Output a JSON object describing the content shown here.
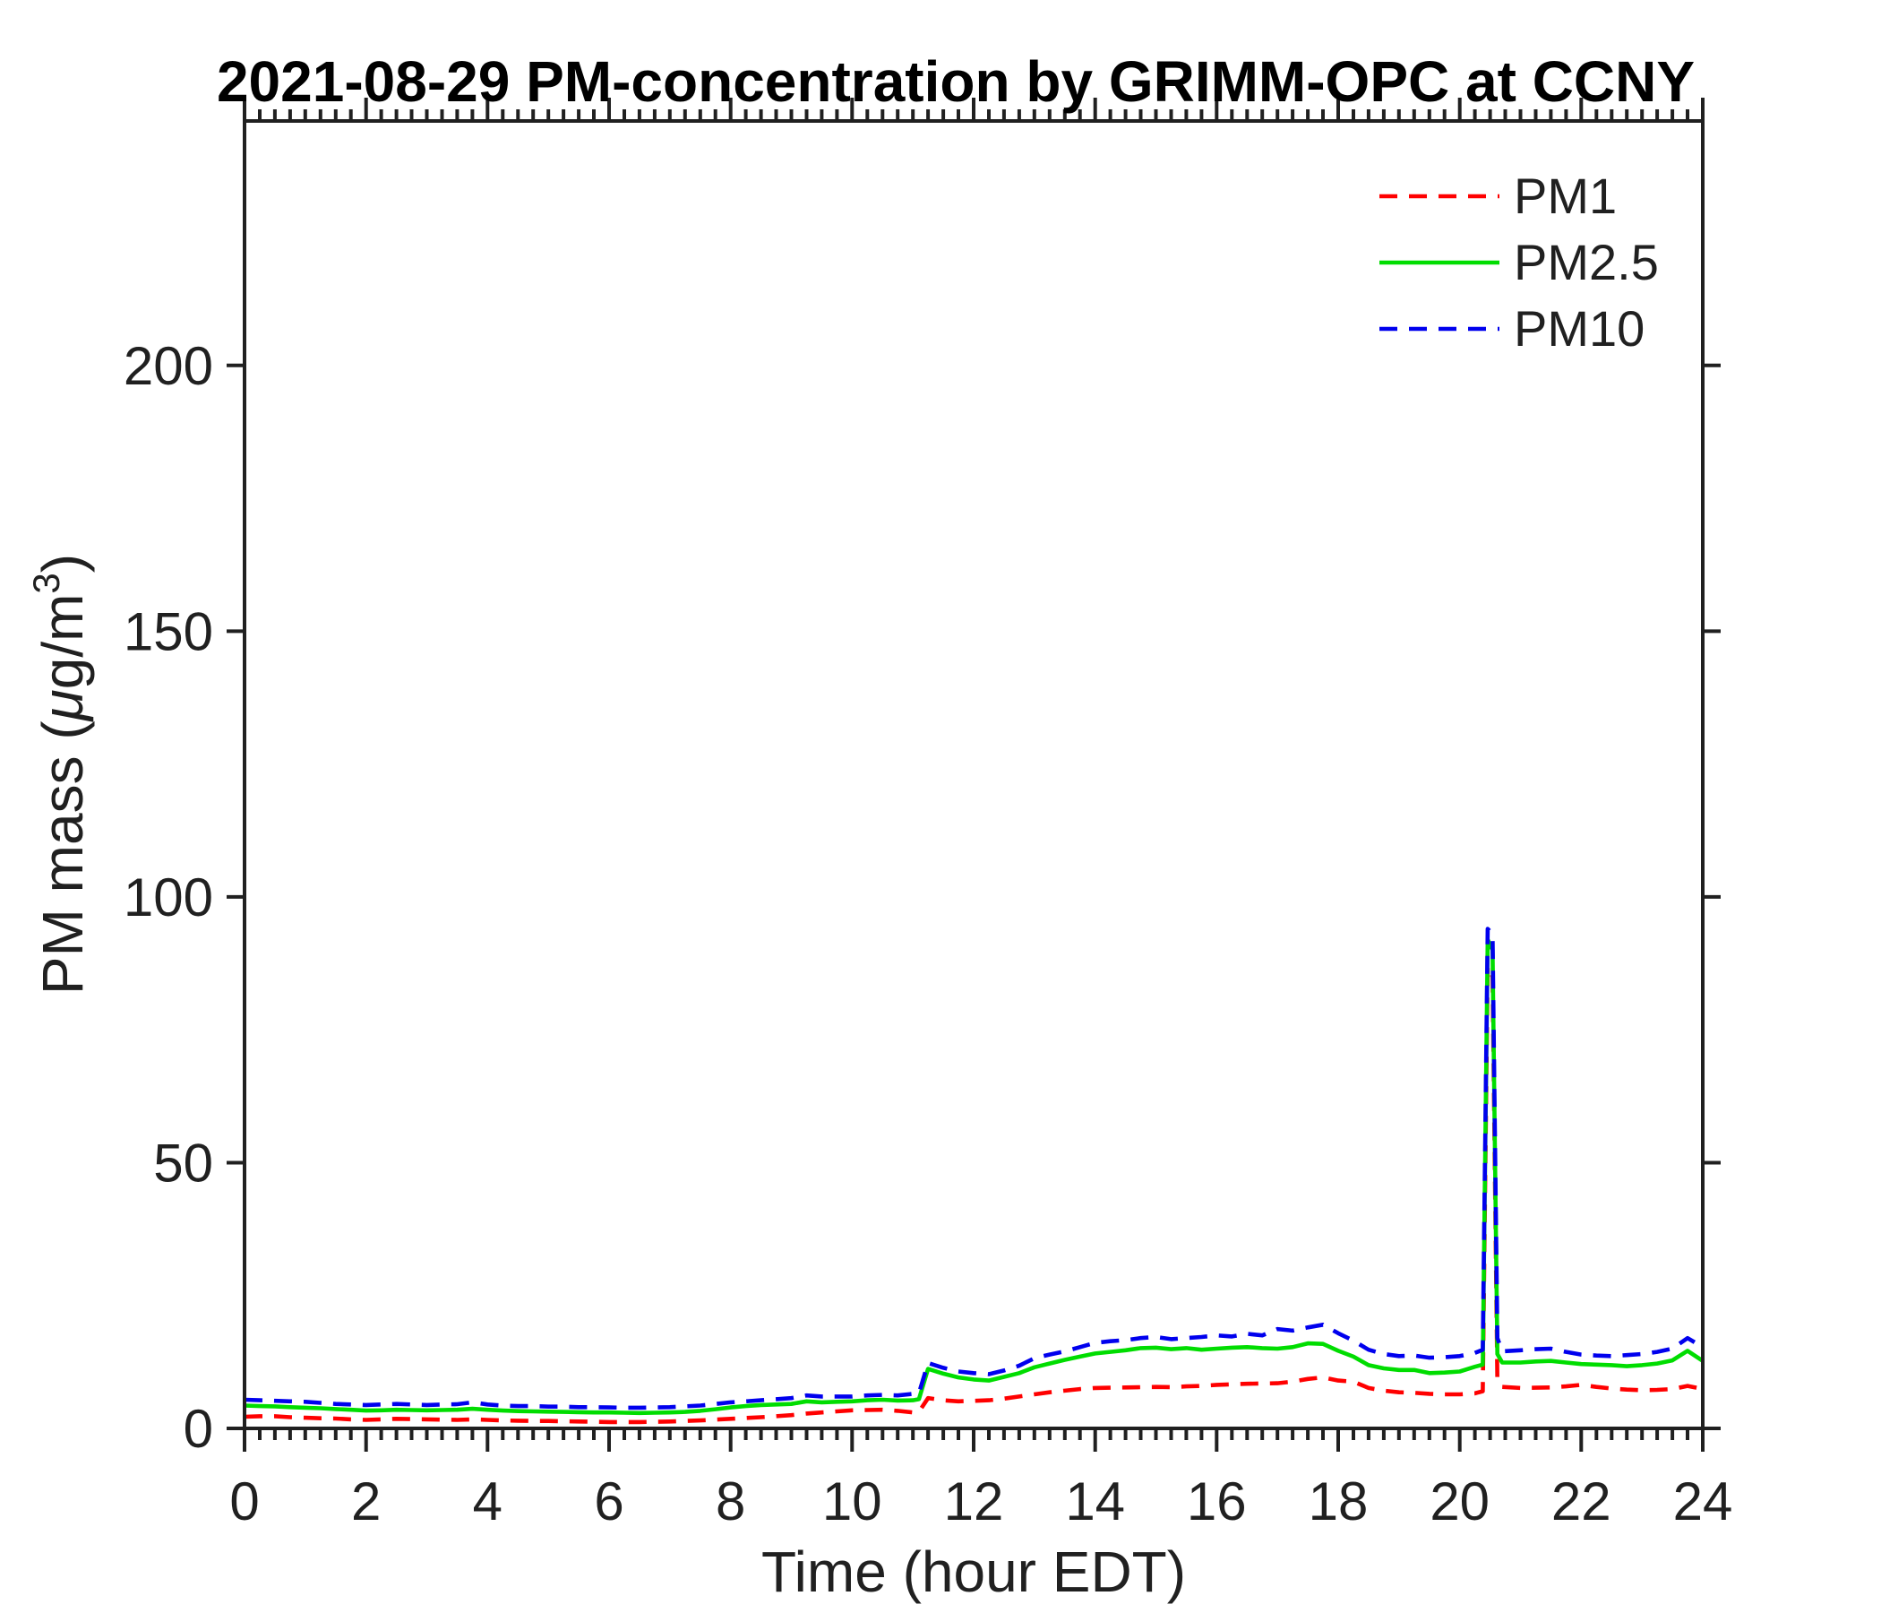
{
  "figure": {
    "title": "2021-08-29 PM-concentration by GRIMM-OPC at CCNY",
    "background": "#ffffff",
    "axis_color": "#202020",
    "text_color": "#202020"
  },
  "axes": {
    "xlabel": "Time (hour EDT)",
    "ylabel": {
      "pre": "PM mass (",
      "mu": "μ",
      "mid": "g/m",
      "sup": "3",
      "post": ")"
    },
    "ylabel_plain": "PM mass (μg/m³)",
    "x_ticks": [
      0,
      2,
      4,
      6,
      8,
      10,
      12,
      14,
      16,
      18,
      20,
      22,
      24
    ],
    "y_ticks": [
      0,
      50,
      100,
      150,
      200
    ],
    "x_minor_step": 0.25,
    "x_major_step": 2
  },
  "legend": {
    "position": "northeast",
    "entries": [
      {
        "label": "PM1",
        "color": "#ff0000",
        "style": "dashed"
      },
      {
        "label": "PM2.5",
        "color": "#00dd00",
        "style": "solid"
      },
      {
        "label": "PM10",
        "color": "#0000ee",
        "style": "dashed"
      }
    ]
  },
  "chart_data": {
    "type": "line",
    "title": "2021-08-29 PM-concentration by GRIMM-OPC at CCNY",
    "xlabel": "Time (hour EDT)",
    "ylabel": "PM mass (μg/m³)",
    "xlim": [
      0,
      24
    ],
    "ylim": [
      0,
      246
    ],
    "grid": false,
    "legend_position": "upper right",
    "x": [
      0,
      0.25,
      0.5,
      0.75,
      1,
      1.25,
      1.5,
      1.75,
      2,
      2.25,
      2.5,
      2.75,
      3,
      3.25,
      3.5,
      3.75,
      4,
      4.25,
      4.5,
      4.75,
      5,
      5.25,
      5.5,
      5.75,
      6,
      6.25,
      6.5,
      6.75,
      7,
      7.25,
      7.5,
      7.75,
      8,
      8.25,
      8.5,
      8.75,
      9,
      9.25,
      9.5,
      9.75,
      10,
      10.25,
      10.5,
      10.75,
      11,
      11.1,
      11.25,
      11.5,
      11.75,
      12,
      12.25,
      12.5,
      12.75,
      13,
      13.25,
      13.5,
      13.75,
      14,
      14.25,
      14.5,
      14.75,
      15,
      15.25,
      15.5,
      15.75,
      16,
      16.25,
      16.5,
      16.75,
      17,
      17.25,
      17.5,
      17.75,
      18,
      18.25,
      18.5,
      18.75,
      19,
      19.25,
      19.5,
      19.75,
      20,
      20.25,
      20.38,
      20.46,
      20.54,
      20.62,
      20.7,
      21,
      21.25,
      21.5,
      21.75,
      22,
      22.25,
      22.5,
      22.75,
      23,
      23.25,
      23.5,
      23.75,
      24
    ],
    "series": [
      {
        "name": "PM1",
        "color": "#ff0000",
        "style": "dashed",
        "values": [
          2.2,
          2.3,
          2.3,
          2.1,
          2.0,
          1.9,
          1.85,
          1.7,
          1.6,
          1.7,
          1.8,
          1.75,
          1.7,
          1.65,
          1.6,
          1.7,
          1.6,
          1.5,
          1.45,
          1.4,
          1.4,
          1.35,
          1.3,
          1.25,
          1.2,
          1.2,
          1.2,
          1.25,
          1.3,
          1.4,
          1.5,
          1.65,
          1.8,
          1.95,
          2.1,
          2.3,
          2.5,
          2.8,
          3.0,
          3.2,
          3.4,
          3.45,
          3.5,
          3.3,
          3.0,
          3.1,
          5.7,
          5.3,
          5.1,
          5.2,
          5.3,
          5.6,
          6.0,
          6.4,
          6.8,
          7.1,
          7.4,
          7.6,
          7.65,
          7.7,
          7.75,
          7.8,
          7.75,
          7.9,
          8.0,
          8.2,
          8.3,
          8.4,
          8.45,
          8.5,
          8.8,
          9.3,
          9.6,
          9.0,
          8.8,
          7.6,
          7.1,
          6.8,
          6.7,
          6.5,
          6.4,
          6.4,
          6.6,
          7.0,
          87,
          85,
          9.0,
          7.8,
          7.6,
          7.65,
          7.7,
          7.9,
          8.2,
          7.8,
          7.5,
          7.3,
          7.2,
          7.25,
          7.4,
          8.0,
          7.4
        ]
      },
      {
        "name": "PM2.5",
        "color": "#00dd00",
        "style": "solid",
        "values": [
          4.3,
          4.2,
          4.15,
          4.0,
          3.9,
          3.8,
          3.65,
          3.5,
          3.35,
          3.4,
          3.5,
          3.45,
          3.4,
          3.45,
          3.5,
          3.7,
          3.5,
          3.35,
          3.25,
          3.2,
          3.15,
          3.1,
          3.05,
          3.0,
          3.0,
          2.95,
          2.9,
          2.95,
          3.0,
          3.1,
          3.3,
          3.6,
          3.95,
          4.2,
          4.4,
          4.5,
          4.6,
          5.1,
          4.9,
          5.0,
          5.1,
          5.3,
          5.4,
          5.25,
          5.3,
          5.5,
          11.2,
          10.3,
          9.6,
          9.2,
          9.0,
          9.7,
          10.4,
          11.5,
          12.2,
          12.9,
          13.5,
          14.1,
          14.4,
          14.7,
          15.1,
          15.2,
          14.9,
          15.1,
          14.8,
          15.0,
          15.2,
          15.3,
          15.1,
          15.0,
          15.3,
          16.0,
          15.9,
          14.6,
          13.5,
          11.9,
          11.3,
          11.0,
          11.0,
          10.4,
          10.5,
          10.7,
          11.6,
          12.0,
          92,
          90,
          14.0,
          12.4,
          12.4,
          12.6,
          12.7,
          12.4,
          12.1,
          12.0,
          11.9,
          11.7,
          11.9,
          12.2,
          12.8,
          14.6,
          12.7
        ]
      },
      {
        "name": "PM10",
        "color": "#0000ee",
        "style": "dashed",
        "values": [
          5.4,
          5.3,
          5.2,
          5.1,
          5.0,
          4.8,
          4.6,
          4.5,
          4.4,
          4.5,
          4.6,
          4.5,
          4.4,
          4.5,
          4.55,
          4.9,
          4.5,
          4.3,
          4.2,
          4.2,
          4.1,
          4.1,
          4.0,
          4.0,
          3.95,
          3.9,
          3.9,
          3.95,
          4.0,
          4.15,
          4.3,
          4.6,
          4.9,
          5.1,
          5.3,
          5.5,
          5.7,
          6.2,
          6.0,
          6.0,
          6.0,
          6.2,
          6.3,
          6.2,
          6.5,
          6.6,
          12.3,
          11.4,
          10.7,
          10.4,
          10.2,
          10.9,
          11.8,
          13.2,
          13.9,
          14.5,
          15.3,
          16.1,
          16.4,
          16.6,
          17.0,
          17.2,
          16.8,
          17.0,
          17.2,
          17.5,
          17.3,
          17.8,
          17.5,
          18.7,
          18.4,
          19.0,
          19.5,
          17.9,
          16.5,
          14.8,
          14.0,
          13.6,
          13.7,
          13.3,
          13.4,
          13.6,
          14.2,
          14.8,
          94,
          93,
          17.0,
          14.5,
          14.7,
          14.9,
          15.0,
          14.4,
          13.9,
          13.7,
          13.6,
          13.8,
          14.0,
          14.4,
          15.0,
          17.0,
          15.3
        ]
      }
    ]
  }
}
